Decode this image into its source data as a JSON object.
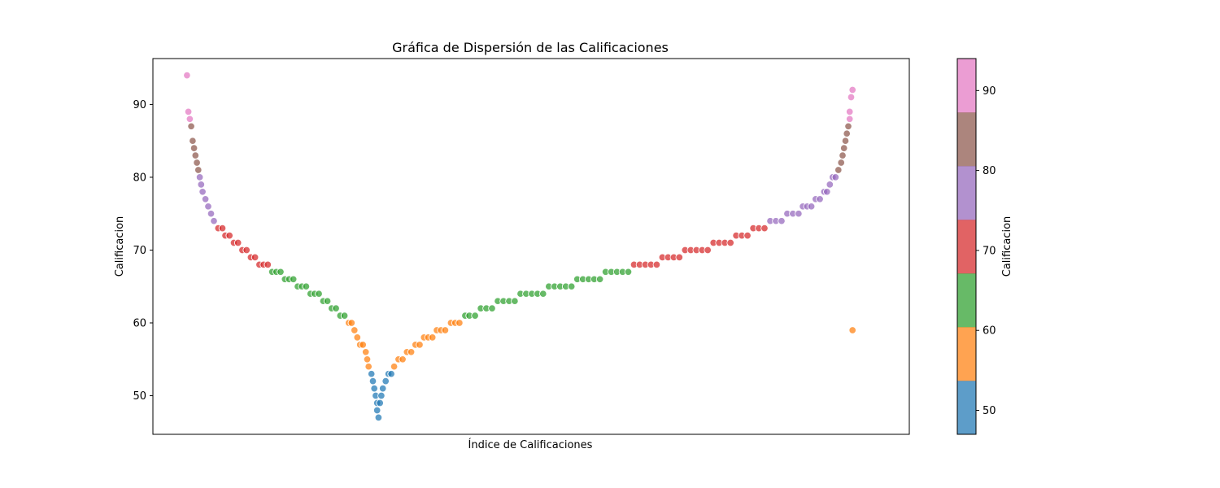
{
  "chart_data": {
    "type": "scatter",
    "title": "Gráfica de Dispersión de las Calificaciones",
    "xlabel": "Índice de Calificaciones",
    "ylabel": "Calificacion",
    "x_ticks_visible": false,
    "xlim": [
      -13,
      520
    ],
    "ylim": [
      44.7,
      96.3
    ],
    "yticks": [
      50,
      60,
      70,
      80,
      90
    ],
    "grid": false,
    "colorbar": {
      "label": "Calificacion",
      "range": [
        47,
        94
      ],
      "ticks": [
        50,
        60,
        70,
        80,
        90
      ],
      "colors": [
        "#1f77b4",
        "#ff7f0e",
        "#2ca02c",
        "#d62728",
        "#9467bd",
        "#8c564b",
        "#e377c2"
      ]
    },
    "points": [
      [
        11,
        94
      ],
      [
        12,
        89
      ],
      [
        13,
        88
      ],
      [
        14,
        87
      ],
      [
        15,
        85
      ],
      [
        16,
        84
      ],
      [
        17,
        83
      ],
      [
        18,
        82
      ],
      [
        19,
        81
      ],
      [
        20,
        80
      ],
      [
        21,
        79
      ],
      [
        22,
        78
      ],
      [
        24,
        77
      ],
      [
        26,
        76
      ],
      [
        28,
        75
      ],
      [
        30,
        74
      ],
      [
        33,
        73
      ],
      [
        36,
        73
      ],
      [
        38,
        72
      ],
      [
        41,
        72
      ],
      [
        44,
        71
      ],
      [
        47,
        71
      ],
      [
        50,
        70
      ],
      [
        53,
        70
      ],
      [
        56,
        69
      ],
      [
        59,
        69
      ],
      [
        62,
        68
      ],
      [
        65,
        68
      ],
      [
        68,
        68
      ],
      [
        71,
        67
      ],
      [
        74,
        67
      ],
      [
        77,
        67
      ],
      [
        80,
        66
      ],
      [
        83,
        66
      ],
      [
        86,
        66
      ],
      [
        89,
        65
      ],
      [
        92,
        65
      ],
      [
        95,
        65
      ],
      [
        98,
        64
      ],
      [
        101,
        64
      ],
      [
        104,
        64
      ],
      [
        107,
        63
      ],
      [
        110,
        63
      ],
      [
        113,
        62
      ],
      [
        116,
        62
      ],
      [
        119,
        61
      ],
      [
        122,
        61
      ],
      [
        125,
        60
      ],
      [
        127,
        60
      ],
      [
        129,
        59
      ],
      [
        131,
        58
      ],
      [
        133,
        57
      ],
      [
        135,
        57
      ],
      [
        137,
        56
      ],
      [
        138,
        55
      ],
      [
        139,
        54
      ],
      [
        141,
        53
      ],
      [
        142,
        52
      ],
      [
        143,
        51
      ],
      [
        144,
        50
      ],
      [
        145,
        49
      ],
      [
        145,
        48
      ],
      [
        146,
        47
      ],
      [
        147,
        49
      ],
      [
        148,
        50
      ],
      [
        149,
        51
      ],
      [
        151,
        52
      ],
      [
        153,
        53
      ],
      [
        155,
        53
      ],
      [
        157,
        54
      ],
      [
        160,
        55
      ],
      [
        163,
        55
      ],
      [
        166,
        56
      ],
      [
        169,
        56
      ],
      [
        172,
        57
      ],
      [
        175,
        57
      ],
      [
        178,
        58
      ],
      [
        181,
        58
      ],
      [
        184,
        58
      ],
      [
        187,
        59
      ],
      [
        190,
        59
      ],
      [
        193,
        59
      ],
      [
        197,
        60
      ],
      [
        200,
        60
      ],
      [
        203,
        60
      ],
      [
        207,
        61
      ],
      [
        210,
        61
      ],
      [
        214,
        61
      ],
      [
        218,
        62
      ],
      [
        222,
        62
      ],
      [
        226,
        62
      ],
      [
        230,
        63
      ],
      [
        234,
        63
      ],
      [
        238,
        63
      ],
      [
        242,
        63
      ],
      [
        246,
        64
      ],
      [
        250,
        64
      ],
      [
        254,
        64
      ],
      [
        258,
        64
      ],
      [
        262,
        64
      ],
      [
        266,
        65
      ],
      [
        270,
        65
      ],
      [
        274,
        65
      ],
      [
        278,
        65
      ],
      [
        282,
        65
      ],
      [
        286,
        66
      ],
      [
        290,
        66
      ],
      [
        294,
        66
      ],
      [
        298,
        66
      ],
      [
        302,
        66
      ],
      [
        306,
        67
      ],
      [
        310,
        67
      ],
      [
        314,
        67
      ],
      [
        318,
        67
      ],
      [
        322,
        67
      ],
      [
        326,
        68
      ],
      [
        330,
        68
      ],
      [
        334,
        68
      ],
      [
        338,
        68
      ],
      [
        342,
        68
      ],
      [
        346,
        69
      ],
      [
        350,
        69
      ],
      [
        354,
        69
      ],
      [
        358,
        69
      ],
      [
        362,
        70
      ],
      [
        366,
        70
      ],
      [
        370,
        70
      ],
      [
        374,
        70
      ],
      [
        378,
        70
      ],
      [
        382,
        71
      ],
      [
        386,
        71
      ],
      [
        390,
        71
      ],
      [
        394,
        71
      ],
      [
        398,
        72
      ],
      [
        402,
        72
      ],
      [
        406,
        72
      ],
      [
        410,
        73
      ],
      [
        414,
        73
      ],
      [
        418,
        73
      ],
      [
        422,
        74
      ],
      [
        426,
        74
      ],
      [
        430,
        74
      ],
      [
        434,
        75
      ],
      [
        438,
        75
      ],
      [
        442,
        75
      ],
      [
        445,
        76
      ],
      [
        448,
        76
      ],
      [
        451,
        76
      ],
      [
        454,
        77
      ],
      [
        457,
        77
      ],
      [
        460,
        78
      ],
      [
        462,
        78
      ],
      [
        464,
        79
      ],
      [
        466,
        80
      ],
      [
        468,
        80
      ],
      [
        470,
        81
      ],
      [
        472,
        82
      ],
      [
        473,
        83
      ],
      [
        474,
        84
      ],
      [
        475,
        85
      ],
      [
        476,
        86
      ],
      [
        477,
        87
      ],
      [
        478,
        88
      ],
      [
        478,
        89
      ],
      [
        479,
        91
      ],
      [
        480,
        92
      ],
      [
        480,
        59
      ]
    ]
  }
}
